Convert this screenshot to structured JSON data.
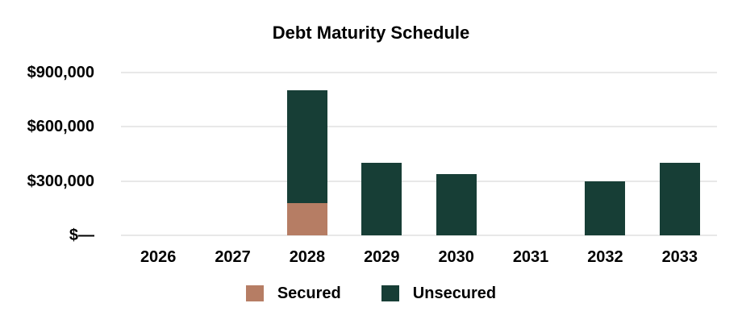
{
  "chart_data": {
    "type": "bar",
    "stacked": true,
    "title": "Debt Maturity Schedule",
    "categories": [
      "2026",
      "2027",
      "2028",
      "2029",
      "2030",
      "2031",
      "2032",
      "2033"
    ],
    "series": [
      {
        "name": "Secured",
        "color": "#b67d64",
        "values": [
          0,
          0,
          180000,
          0,
          0,
          0,
          0,
          0
        ]
      },
      {
        "name": "Unsecured",
        "color": "#173e36",
        "values": [
          0,
          0,
          620000,
          400000,
          340000,
          0,
          300000,
          400000
        ]
      }
    ],
    "totals_by_year": [
      0,
      0,
      800000,
      400000,
      340000,
      0,
      300000,
      400000
    ],
    "y_axis": {
      "min": 0,
      "max": 900000,
      "ticks": [
        {
          "value": 0,
          "label": "$—"
        },
        {
          "value": 300000,
          "label": "$300,000"
        },
        {
          "value": 600000,
          "label": "$600,000"
        },
        {
          "value": 900000,
          "label": "$900,000"
        }
      ]
    },
    "xlabel": "",
    "ylabel": "",
    "grid": true,
    "gridline_color": "#e8e8e8",
    "background_color": "#ffffff",
    "text_color": "#000000",
    "legend_position": "bottom"
  }
}
